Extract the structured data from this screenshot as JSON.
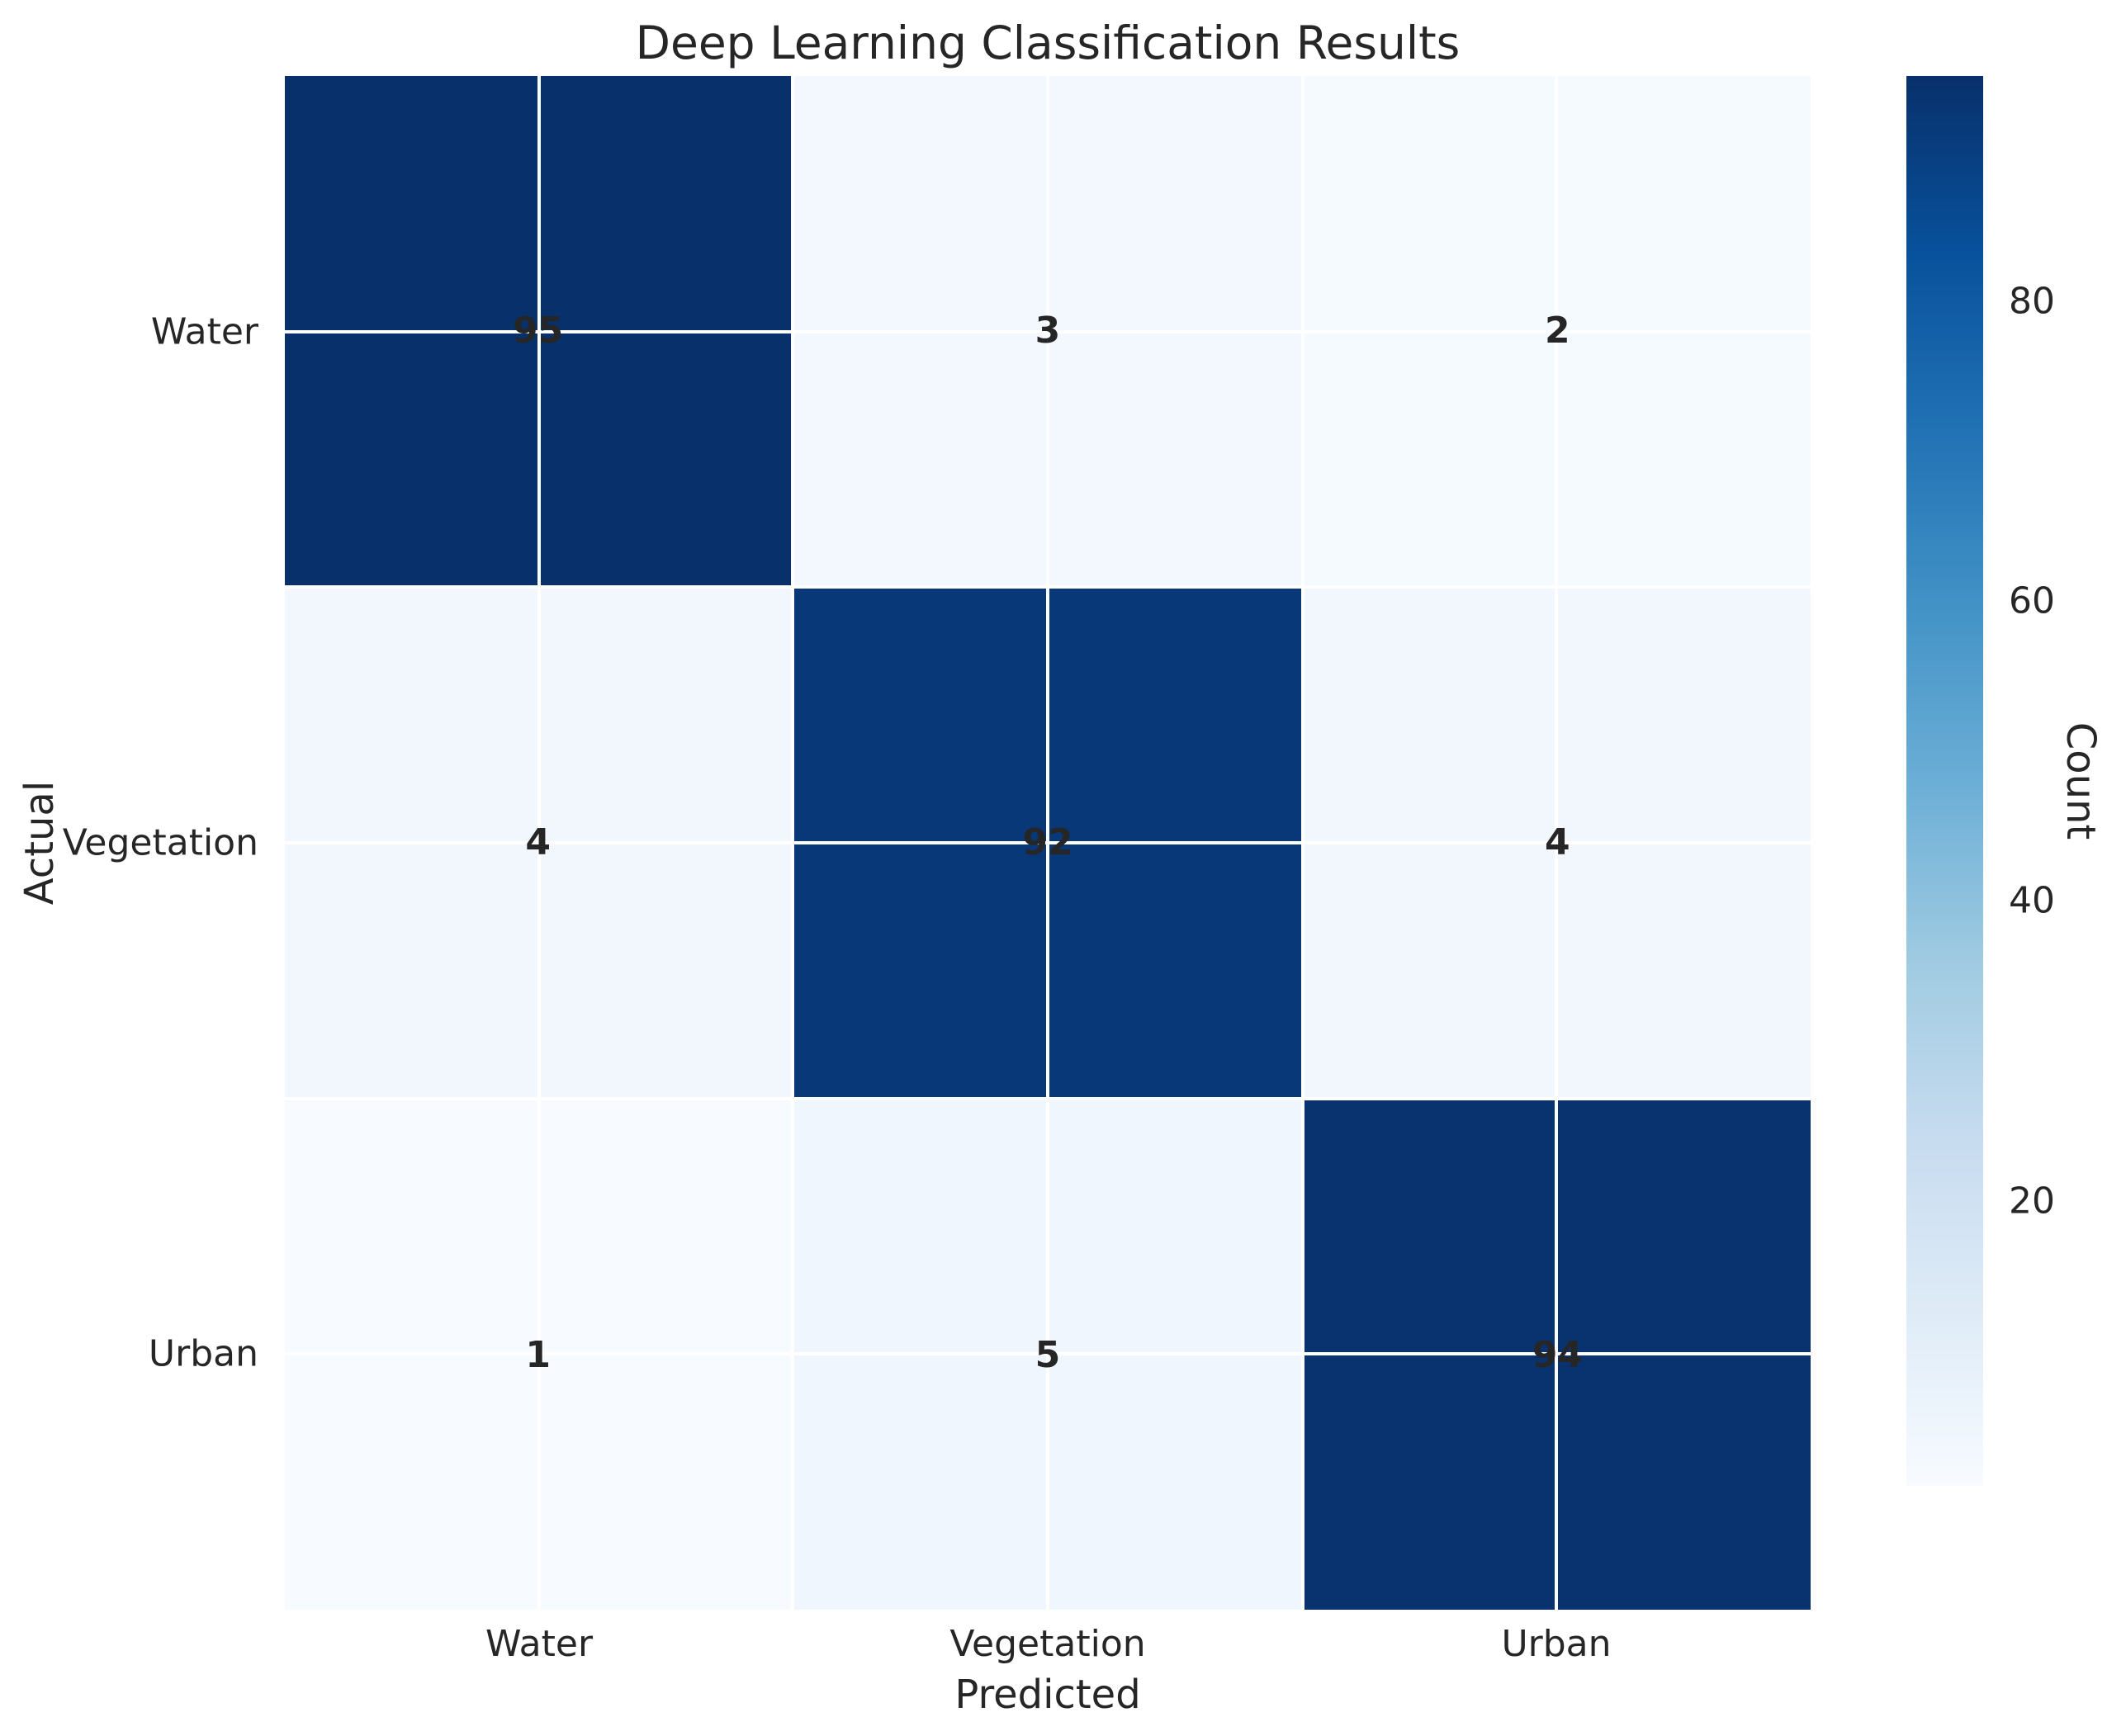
{
  "figure": {
    "background": "#ffffff",
    "text_color": "#262626"
  },
  "chart_data": {
    "type": "heatmap",
    "title": "Deep Learning Classification Results",
    "xlabel": "Predicted",
    "ylabel": "Actual",
    "x_tick_labels": [
      "Water",
      "Vegetation",
      "Urban"
    ],
    "y_tick_labels": [
      "Water",
      "Vegetation",
      "Urban"
    ],
    "matrix": [
      [
        95,
        3,
        2
      ],
      [
        4,
        92,
        4
      ],
      [
        1,
        5,
        94
      ]
    ],
    "cell_colors": [
      [
        "#08306b",
        "#f3f8fe",
        "#f5fafe"
      ],
      [
        "#f1f7fd",
        "#083877",
        "#f1f7fd"
      ],
      [
        "#f7fbff",
        "#eff6fd",
        "#08336f"
      ]
    ],
    "annotation_color": "#262626",
    "annotation_bold": true,
    "colormap": "Blues",
    "grid": true,
    "gridline_color": "#ffffff",
    "legend_position": "none",
    "colorbar": {
      "label": "Count",
      "ticks": [
        20,
        40,
        60,
        80
      ],
      "vmin": 1,
      "vmax": 95,
      "gradient_stops": [
        "#08306b",
        "#08519c",
        "#2171b5",
        "#4292c6",
        "#6baed6",
        "#9ecae1",
        "#c6dbef",
        "#deebf7",
        "#f7fbff"
      ]
    }
  }
}
